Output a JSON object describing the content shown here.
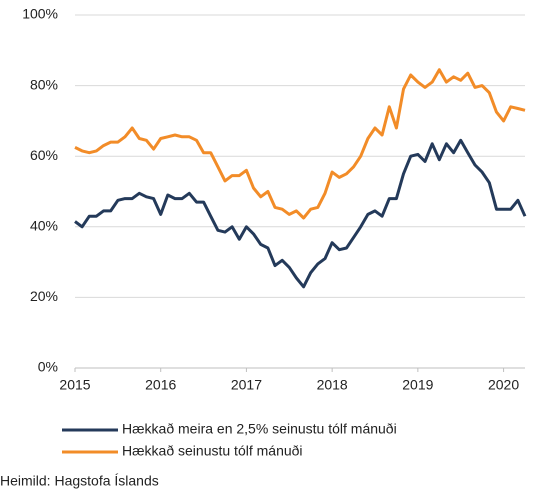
{
  "chart_data": {
    "type": "line",
    "x": [
      2015,
      2015.083,
      2015.167,
      2015.25,
      2015.333,
      2015.417,
      2015.5,
      2015.583,
      2015.667,
      2015.75,
      2015.833,
      2015.917,
      2016,
      2016.083,
      2016.167,
      2016.25,
      2016.333,
      2016.417,
      2016.5,
      2016.583,
      2016.667,
      2016.75,
      2016.833,
      2016.917,
      2017,
      2017.083,
      2017.167,
      2017.25,
      2017.333,
      2017.417,
      2017.5,
      2017.583,
      2017.667,
      2017.75,
      2017.833,
      2017.917,
      2018,
      2018.083,
      2018.167,
      2018.25,
      2018.333,
      2018.417,
      2018.5,
      2018.583,
      2018.667,
      2018.75,
      2018.833,
      2018.917,
      2019,
      2019.083,
      2019.167,
      2019.25,
      2019.333,
      2019.417,
      2019.5,
      2019.583,
      2019.667,
      2019.75,
      2019.833,
      2019.917,
      2020,
      2020.083,
      2020.167,
      2020.25
    ],
    "series": [
      {
        "name": "Hækkað meira en 2,5% seinustu tólf mánuði",
        "color": "#243a5a",
        "values": [
          41.5,
          40,
          43,
          43,
          44.5,
          44.5,
          47.5,
          48,
          48,
          49.5,
          48.5,
          48,
          43.5,
          49,
          48,
          48,
          49.5,
          47,
          47,
          43,
          39,
          38.5,
          40,
          36.5,
          40,
          38,
          35,
          34,
          29,
          30.5,
          28.5,
          25.5,
          23,
          27,
          29.5,
          31,
          35.5,
          33.5,
          34,
          37,
          40,
          43.5,
          44.5,
          43,
          48,
          48,
          55,
          60,
          60.5,
          58.5,
          63.5,
          59,
          63.5,
          61,
          64.5,
          61,
          57.5,
          55.5,
          52.5,
          45,
          45,
          45,
          47.5,
          43
        ]
      },
      {
        "name": "Hækkað seinustu tólf mánuði",
        "color": "#f28c28",
        "values": [
          62.5,
          61.5,
          61,
          61.5,
          63,
          64,
          64,
          65.5,
          68,
          65,
          64.5,
          62,
          65,
          65.5,
          66,
          65.5,
          65.5,
          64.5,
          61,
          61,
          57,
          53,
          54.5,
          54.5,
          56,
          51,
          48.5,
          50,
          45.5,
          45,
          43.5,
          44.5,
          42.5,
          45,
          45.5,
          49.5,
          55.5,
          54,
          55,
          57,
          60,
          65,
          68,
          66,
          74,
          68,
          79,
          83,
          81,
          79.5,
          81,
          84.5,
          81,
          82.5,
          81.5,
          83.5,
          79.5,
          80,
          78,
          72.5,
          70,
          74,
          73.5,
          73
        ]
      }
    ],
    "xlim": [
      2015,
      2020.25
    ],
    "xticks": [
      2015,
      2016,
      2017,
      2018,
      2019,
      2020
    ],
    "ylim": [
      0,
      100
    ],
    "yticks": [
      {
        "value": 0,
        "label": "0%"
      },
      {
        "value": 20,
        "label": "20%"
      },
      {
        "value": 40,
        "label": "40%"
      },
      {
        "value": 60,
        "label": "60%"
      },
      {
        "value": 80,
        "label": "80%"
      },
      {
        "value": 100,
        "label": "100%"
      }
    ],
    "grid": true,
    "legend": "bottom",
    "source": "Heimild: Hagstofa Íslands"
  }
}
